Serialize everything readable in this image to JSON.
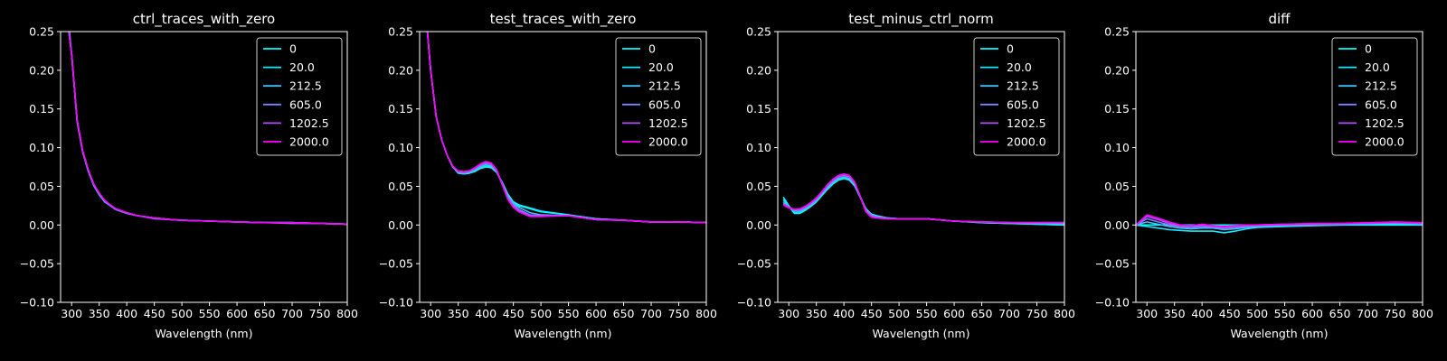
{
  "chart_data": [
    {
      "type": "line",
      "title": "ctrl_traces_with_zero",
      "xlabel": "Wavelength (nm)",
      "ylabel": "",
      "xlim": [
        280,
        800
      ],
      "ylim": [
        -0.1,
        0.25
      ],
      "xticks": [
        "300",
        "350",
        "400",
        "450",
        "500",
        "550",
        "600",
        "650",
        "700",
        "750",
        "800"
      ],
      "yticks": [
        "0.25",
        "0.20",
        "0.15",
        "0.10",
        "0.05",
        "0.00",
        "−0.05",
        "−0.10"
      ],
      "grid": false,
      "legend": "top-right",
      "x": [
        295,
        300,
        310,
        320,
        330,
        340,
        350,
        360,
        370,
        380,
        400,
        420,
        450,
        480,
        500,
        550,
        600,
        650,
        700,
        750,
        800
      ],
      "series": [
        {
          "name": "0",
          "color": "#00ffff",
          "values": [
            0.26,
            0.22,
            0.135,
            0.095,
            0.07,
            0.052,
            0.04,
            0.03,
            0.025,
            0.02,
            0.015,
            0.012,
            0.009,
            0.007,
            0.006,
            0.005,
            0.004,
            0.003,
            0.003,
            0.002,
            0.001
          ]
        },
        {
          "name": "20.0",
          "color": "#14ebff",
          "values": [
            0.25,
            0.22,
            0.133,
            0.094,
            0.07,
            0.051,
            0.039,
            0.03,
            0.025,
            0.02,
            0.015,
            0.012,
            0.009,
            0.007,
            0.006,
            0.005,
            0.004,
            0.003,
            0.003,
            0.002,
            0.001
          ]
        },
        {
          "name": "212.5",
          "color": "#3fc0ff",
          "values": [
            0.25,
            0.221,
            0.134,
            0.095,
            0.071,
            0.052,
            0.04,
            0.031,
            0.025,
            0.021,
            0.015,
            0.012,
            0.009,
            0.007,
            0.006,
            0.005,
            0.004,
            0.003,
            0.003,
            0.002,
            0.001
          ]
        },
        {
          "name": "605.0",
          "color": "#7a85ff",
          "values": [
            0.25,
            0.222,
            0.135,
            0.095,
            0.071,
            0.052,
            0.04,
            0.031,
            0.025,
            0.02,
            0.015,
            0.012,
            0.008,
            0.007,
            0.006,
            0.005,
            0.004,
            0.003,
            0.002,
            0.002,
            0.001
          ]
        },
        {
          "name": "1202.5",
          "color": "#b34cff",
          "values": [
            0.25,
            0.222,
            0.136,
            0.096,
            0.072,
            0.053,
            0.041,
            0.031,
            0.026,
            0.021,
            0.016,
            0.012,
            0.009,
            0.007,
            0.006,
            0.005,
            0.004,
            0.003,
            0.003,
            0.002,
            0.001
          ]
        },
        {
          "name": "2000.0",
          "color": "#ff00ff",
          "values": [
            0.25,
            0.222,
            0.136,
            0.096,
            0.072,
            0.053,
            0.041,
            0.032,
            0.026,
            0.021,
            0.016,
            0.012,
            0.009,
            0.007,
            0.006,
            0.005,
            0.004,
            0.003,
            0.003,
            0.002,
            0.001
          ]
        }
      ]
    },
    {
      "type": "line",
      "title": "test_traces_with_zero",
      "xlabel": "Wavelength (nm)",
      "ylabel": "",
      "xlim": [
        280,
        800
      ],
      "ylim": [
        -0.1,
        0.25
      ],
      "xticks": [
        "300",
        "350",
        "400",
        "450",
        "500",
        "550",
        "600",
        "650",
        "700",
        "750",
        "800"
      ],
      "yticks": [
        "0.25",
        "0.20",
        "0.15",
        "0.10",
        "0.05",
        "0.00",
        "−0.05",
        "−0.10"
      ],
      "grid": false,
      "legend": "top-right",
      "x": [
        293,
        300,
        310,
        320,
        330,
        340,
        350,
        360,
        370,
        380,
        390,
        400,
        410,
        420,
        430,
        440,
        450,
        460,
        480,
        500,
        550,
        600,
        650,
        700,
        750,
        800
      ],
      "series": [
        {
          "name": "0",
          "color": "#00ffff",
          "values": [
            0.26,
            0.2,
            0.14,
            0.11,
            0.09,
            0.075,
            0.068,
            0.066,
            0.067,
            0.069,
            0.073,
            0.075,
            0.074,
            0.068,
            0.055,
            0.04,
            0.03,
            0.026,
            0.022,
            0.018,
            0.013,
            0.008,
            0.006,
            0.004,
            0.004,
            0.003
          ]
        },
        {
          "name": "20.0",
          "color": "#14ebff",
          "values": [
            0.26,
            0.2,
            0.14,
            0.11,
            0.09,
            0.075,
            0.067,
            0.066,
            0.067,
            0.07,
            0.074,
            0.076,
            0.075,
            0.068,
            0.054,
            0.039,
            0.029,
            0.025,
            0.021,
            0.017,
            0.013,
            0.008,
            0.006,
            0.004,
            0.004,
            0.003
          ]
        },
        {
          "name": "212.5",
          "color": "#3fc0ff",
          "values": [
            0.26,
            0.2,
            0.14,
            0.11,
            0.09,
            0.075,
            0.068,
            0.067,
            0.068,
            0.071,
            0.075,
            0.078,
            0.076,
            0.069,
            0.054,
            0.038,
            0.028,
            0.023,
            0.016,
            0.013,
            0.012,
            0.007,
            0.006,
            0.004,
            0.004,
            0.003
          ]
        },
        {
          "name": "605.0",
          "color": "#7a85ff",
          "values": [
            0.26,
            0.2,
            0.14,
            0.11,
            0.09,
            0.076,
            0.069,
            0.068,
            0.069,
            0.072,
            0.077,
            0.08,
            0.078,
            0.07,
            0.053,
            0.036,
            0.026,
            0.02,
            0.013,
            0.012,
            0.012,
            0.007,
            0.006,
            0.004,
            0.004,
            0.003
          ]
        },
        {
          "name": "1202.5",
          "color": "#b34cff",
          "values": [
            0.26,
            0.2,
            0.14,
            0.11,
            0.09,
            0.076,
            0.069,
            0.068,
            0.07,
            0.073,
            0.078,
            0.081,
            0.079,
            0.07,
            0.052,
            0.034,
            0.024,
            0.018,
            0.012,
            0.012,
            0.012,
            0.007,
            0.006,
            0.004,
            0.004,
            0.003
          ]
        },
        {
          "name": "2000.0",
          "color": "#ff00ff",
          "values": [
            0.26,
            0.2,
            0.14,
            0.11,
            0.09,
            0.076,
            0.07,
            0.069,
            0.07,
            0.074,
            0.079,
            0.082,
            0.08,
            0.071,
            0.052,
            0.033,
            0.023,
            0.017,
            0.011,
            0.011,
            0.012,
            0.007,
            0.006,
            0.004,
            0.004,
            0.003
          ]
        }
      ]
    },
    {
      "type": "line",
      "title": "test_minus_ctrl_norm",
      "xlabel": "Wavelength (nm)",
      "ylabel": "",
      "xlim": [
        280,
        800
      ],
      "ylim": [
        -0.1,
        0.25
      ],
      "xticks": [
        "300",
        "350",
        "400",
        "450",
        "500",
        "550",
        "600",
        "650",
        "700",
        "750",
        "800"
      ],
      "yticks": [
        "0.25",
        "0.20",
        "0.15",
        "0.10",
        "0.05",
        "0.00",
        "−0.05",
        "−0.10"
      ],
      "grid": false,
      "legend": "top-right",
      "x": [
        290,
        300,
        310,
        320,
        330,
        340,
        350,
        360,
        370,
        380,
        390,
        400,
        410,
        420,
        430,
        440,
        450,
        460,
        480,
        500,
        550,
        600,
        650,
        700,
        750,
        800
      ],
      "series": [
        {
          "name": "0",
          "color": "#00ffff",
          "values": [
            0.036,
            0.025,
            0.015,
            0.015,
            0.019,
            0.024,
            0.03,
            0.038,
            0.046,
            0.053,
            0.058,
            0.06,
            0.058,
            0.05,
            0.035,
            0.02,
            0.013,
            0.011,
            0.009,
            0.008,
            0.008,
            0.005,
            0.003,
            0.002,
            0.001,
            0.0
          ]
        },
        {
          "name": "20.0",
          "color": "#14ebff",
          "values": [
            0.033,
            0.024,
            0.016,
            0.016,
            0.02,
            0.025,
            0.031,
            0.039,
            0.047,
            0.054,
            0.059,
            0.061,
            0.059,
            0.051,
            0.036,
            0.021,
            0.014,
            0.012,
            0.009,
            0.008,
            0.008,
            0.005,
            0.003,
            0.002,
            0.001,
            0.0
          ]
        },
        {
          "name": "212.5",
          "color": "#3fc0ff",
          "values": [
            0.03,
            0.024,
            0.018,
            0.018,
            0.021,
            0.026,
            0.032,
            0.04,
            0.048,
            0.055,
            0.06,
            0.062,
            0.06,
            0.052,
            0.036,
            0.02,
            0.013,
            0.011,
            0.009,
            0.008,
            0.008,
            0.005,
            0.004,
            0.003,
            0.002,
            0.002
          ]
        },
        {
          "name": "605.0",
          "color": "#7a85ff",
          "values": [
            0.028,
            0.023,
            0.019,
            0.019,
            0.022,
            0.027,
            0.033,
            0.041,
            0.05,
            0.057,
            0.062,
            0.064,
            0.062,
            0.053,
            0.036,
            0.019,
            0.012,
            0.01,
            0.008,
            0.008,
            0.008,
            0.005,
            0.004,
            0.003,
            0.003,
            0.003
          ]
        },
        {
          "name": "1202.5",
          "color": "#b34cff",
          "values": [
            0.027,
            0.023,
            0.02,
            0.02,
            0.023,
            0.028,
            0.034,
            0.042,
            0.051,
            0.058,
            0.063,
            0.065,
            0.063,
            0.054,
            0.036,
            0.018,
            0.011,
            0.009,
            0.008,
            0.008,
            0.008,
            0.005,
            0.004,
            0.003,
            0.003,
            0.003
          ]
        },
        {
          "name": "2000.0",
          "color": "#ff00ff",
          "values": [
            0.026,
            0.022,
            0.02,
            0.021,
            0.024,
            0.029,
            0.035,
            0.043,
            0.052,
            0.059,
            0.064,
            0.066,
            0.064,
            0.055,
            0.036,
            0.017,
            0.01,
            0.009,
            0.008,
            0.008,
            0.008,
            0.005,
            0.004,
            0.003,
            0.003,
            0.003
          ]
        }
      ]
    },
    {
      "type": "line",
      "title": "diff",
      "xlabel": "Wavelength (nm)",
      "ylabel": "",
      "xlim": [
        280,
        800
      ],
      "ylim": [
        -0.1,
        0.25
      ],
      "xticks": [
        "300",
        "350",
        "400",
        "450",
        "500",
        "550",
        "600",
        "650",
        "700",
        "750",
        "800"
      ],
      "yticks": [
        "0.25",
        "0.20",
        "0.15",
        "0.10",
        "0.05",
        "0.00",
        "−0.05",
        "−0.10"
      ],
      "grid": false,
      "legend": "top-right",
      "x": [
        280,
        300,
        320,
        340,
        360,
        380,
        400,
        420,
        440,
        460,
        480,
        500,
        550,
        600,
        650,
        700,
        750,
        800
      ],
      "series": [
        {
          "name": "0",
          "color": "#00ffff",
          "values": [
            0.0,
            0.0,
            0.0,
            0.0,
            0.0,
            0.0,
            0.0,
            0.0,
            0.0,
            0.0,
            0.0,
            0.0,
            0.0,
            0.0,
            0.0,
            0.0,
            0.0,
            0.0
          ]
        },
        {
          "name": "20.0",
          "color": "#14ebff",
          "values": [
            0.0,
            -0.002,
            -0.004,
            -0.006,
            -0.007,
            -0.008,
            -0.008,
            -0.008,
            -0.01,
            -0.008,
            -0.005,
            -0.003,
            -0.002,
            -0.001,
            0.0,
            0.001,
            0.002,
            0.001
          ]
        },
        {
          "name": "212.5",
          "color": "#3fc0ff",
          "values": [
            0.0,
            0.004,
            0.001,
            -0.002,
            -0.004,
            -0.005,
            -0.004,
            -0.004,
            -0.006,
            -0.005,
            -0.003,
            -0.002,
            -0.001,
            0.0,
            0.001,
            0.002,
            0.002,
            0.001
          ]
        },
        {
          "name": "605.0",
          "color": "#7a85ff",
          "values": [
            0.0,
            0.008,
            0.004,
            0.0,
            -0.002,
            -0.003,
            -0.002,
            -0.003,
            -0.004,
            -0.003,
            -0.002,
            -0.001,
            0.0,
            0.001,
            0.001,
            0.002,
            0.003,
            0.002
          ]
        },
        {
          "name": "1202.5",
          "color": "#b34cff",
          "values": [
            0.0,
            0.011,
            0.007,
            0.002,
            -0.001,
            -0.002,
            0.0,
            -0.002,
            -0.003,
            -0.002,
            -0.001,
            0.0,
            0.001,
            0.001,
            0.002,
            0.002,
            0.003,
            0.002
          ]
        },
        {
          "name": "2000.0",
          "color": "#ff00ff",
          "values": [
            0.0,
            0.013,
            0.009,
            0.004,
            0.0,
            -0.001,
            0.001,
            -0.001,
            -0.002,
            -0.001,
            0.0,
            0.0,
            0.001,
            0.002,
            0.002,
            0.003,
            0.004,
            0.003
          ]
        }
      ]
    }
  ]
}
